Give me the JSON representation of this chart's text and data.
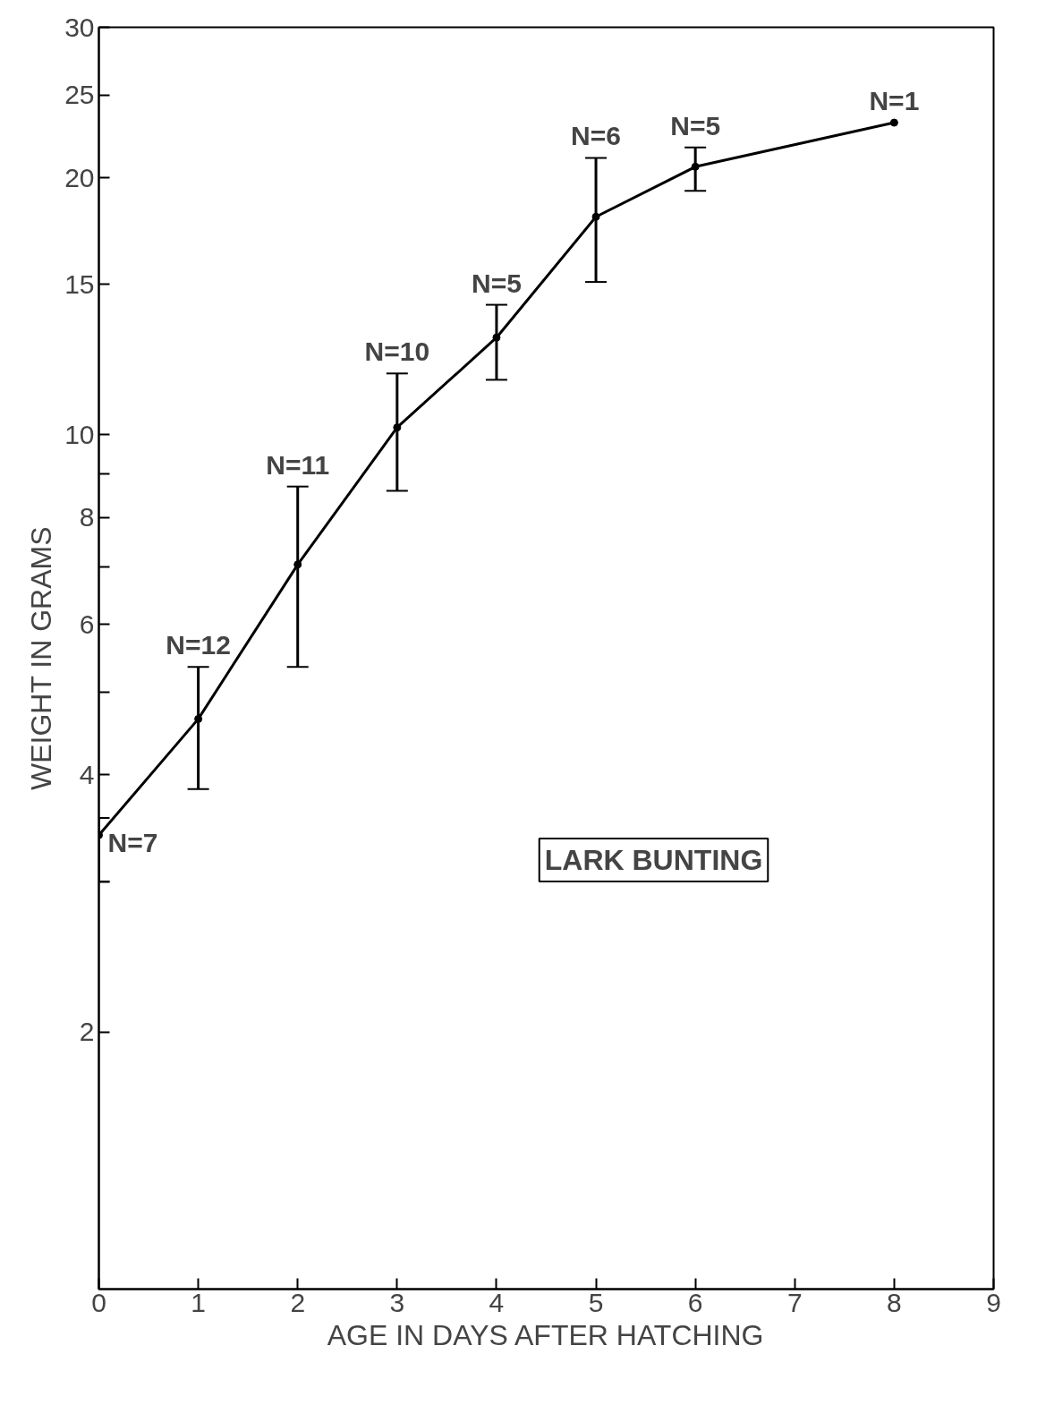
{
  "chart_data": {
    "type": "line",
    "xlabel": "AGE IN DAYS AFTER HATCHING",
    "ylabel": "WEIGHT IN GRAMS",
    "x": [
      0,
      1,
      2,
      3,
      4,
      5,
      6,
      8
    ],
    "series": [
      {
        "color": "#000000",
        "values": [
          3.4,
          4.65,
          7.05,
          10.2,
          13.0,
          18.0,
          20.6,
          23.2
        ],
        "errors": [
          [
            3.0,
            3.56
          ],
          [
            3.85,
            5.35
          ],
          [
            5.35,
            8.7
          ],
          [
            8.6,
            11.8
          ],
          [
            11.6,
            14.2
          ],
          [
            15.1,
            21.1
          ],
          [
            19.3,
            21.7
          ],
          null
        ]
      }
    ],
    "log": "y",
    "xlim": [
      0,
      9
    ],
    "ylim": [
      1,
      30
    ],
    "xticks": [
      0,
      1,
      2,
      3,
      4,
      5,
      6,
      7,
      8,
      9
    ],
    "yticks": [
      2,
      {
        "value": 3,
        "label": null
      },
      4,
      {
        "value": 5,
        "label": null
      },
      6,
      {
        "value": 7,
        "label": null
      },
      8,
      {
        "value": 9,
        "label": null
      },
      10,
      15,
      20,
      25,
      30
    ],
    "grid": false,
    "marker": "circle",
    "line_style": "solid",
    "annotations": [
      {
        "text": "N=7",
        "x": 0,
        "y": 3.4
      },
      {
        "text": "N=12",
        "x": 1,
        "y": 5.35
      },
      {
        "text": "N=11",
        "x": 2,
        "y": 8.7
      },
      {
        "text": "N=10",
        "x": 3,
        "y": 11.8
      },
      {
        "text": "N=5",
        "x": 4,
        "y": 14.2
      },
      {
        "text": "N=6",
        "x": 5,
        "y": 21.1
      },
      {
        "text": "N=5",
        "x": 6,
        "y": 21.7
      },
      {
        "text": "N=1",
        "x": 8,
        "y": 23.2
      },
      "LARK BUNTING"
    ]
  }
}
